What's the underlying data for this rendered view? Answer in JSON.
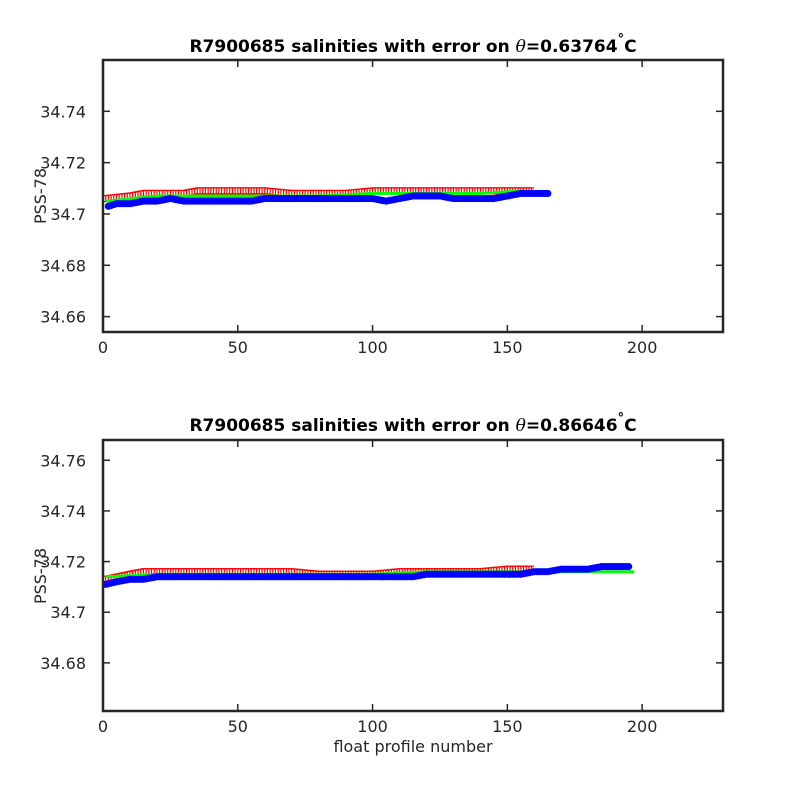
{
  "chart_data": [
    {
      "type": "scatter",
      "title_main": "R7900685 salinities with error on ",
      "title_theta_symbol": "θ",
      "title_value": "=0.63764",
      "title_degree": "°",
      "title_unit": "C",
      "xlabel": "",
      "ylabel": "PSS-78",
      "xlim": [
        0,
        230
      ],
      "ylim": [
        34.654,
        34.76
      ],
      "xticks": [
        "0",
        "50",
        "100",
        "150",
        "200"
      ],
      "yticks": [
        "34.66",
        "34.68",
        "34.7",
        "34.72",
        "34.74"
      ],
      "xtick_values": [
        0,
        50,
        100,
        150,
        200
      ],
      "ytick_values": [
        34.66,
        34.68,
        34.7,
        34.72,
        34.74
      ],
      "grid": false,
      "series": [
        {
          "color": "#ff0000",
          "marker": "errorbar",
          "x": [
            1,
            10,
            15,
            20,
            30,
            35,
            40,
            50,
            60,
            70,
            80,
            90,
            100,
            110,
            120,
            130,
            140,
            150,
            160
          ],
          "y": [
            34.706,
            34.707,
            34.708,
            34.708,
            34.708,
            34.709,
            34.709,
            34.709,
            34.709,
            34.708,
            34.708,
            34.708,
            34.709,
            34.709,
            34.709,
            34.709,
            34.709,
            34.709,
            34.709
          ]
        },
        {
          "color": "#00ff00",
          "marker": "line",
          "x": [
            1,
            20,
            40,
            60,
            80,
            100,
            120,
            140,
            155,
            165
          ],
          "y": [
            34.705,
            34.707,
            34.707,
            34.707,
            34.707,
            34.708,
            34.708,
            34.708,
            34.709,
            34.708
          ]
        },
        {
          "color": "#0000ff",
          "marker": "dot",
          "x": [
            2,
            5,
            10,
            15,
            20,
            25,
            30,
            35,
            40,
            45,
            50,
            55,
            60,
            65,
            70,
            75,
            80,
            85,
            90,
            95,
            100,
            105,
            110,
            115,
            120,
            125,
            130,
            135,
            140,
            145,
            150,
            155,
            160,
            165
          ],
          "y": [
            34.703,
            34.704,
            34.704,
            34.705,
            34.705,
            34.706,
            34.705,
            34.705,
            34.705,
            34.705,
            34.705,
            34.705,
            34.706,
            34.706,
            34.706,
            34.706,
            34.706,
            34.706,
            34.706,
            34.706,
            34.706,
            34.705,
            34.706,
            34.707,
            34.707,
            34.707,
            34.706,
            34.706,
            34.706,
            34.706,
            34.707,
            34.708,
            34.708,
            34.708
          ]
        }
      ]
    },
    {
      "type": "scatter",
      "title_main": "R7900685 salinities with error on ",
      "title_theta_symbol": "θ",
      "title_value": "=0.86646",
      "title_degree": "°",
      "title_unit": "C",
      "xlabel": "float profile number",
      "ylabel": "PSS-78",
      "xlim": [
        0,
        230
      ],
      "ylim": [
        34.661,
        34.768
      ],
      "xticks": [
        "0",
        "50",
        "100",
        "150",
        "200"
      ],
      "yticks": [
        "34.68",
        "34.7",
        "34.72",
        "34.74",
        "34.76"
      ],
      "xtick_values": [
        0,
        50,
        100,
        150,
        200
      ],
      "ytick_values": [
        34.68,
        34.7,
        34.72,
        34.74,
        34.76
      ],
      "grid": false,
      "series": [
        {
          "color": "#ff0000",
          "marker": "errorbar",
          "x": [
            1,
            10,
            15,
            20,
            30,
            35,
            40,
            50,
            60,
            70,
            80,
            90,
            100,
            110,
            120,
            130,
            140,
            150,
            160
          ],
          "y": [
            34.713,
            34.715,
            34.716,
            34.716,
            34.716,
            34.716,
            34.716,
            34.716,
            34.716,
            34.716,
            34.715,
            34.715,
            34.715,
            34.716,
            34.716,
            34.716,
            34.716,
            34.717,
            34.717
          ]
        },
        {
          "color": "#00ff00",
          "marker": "line",
          "x": [
            1,
            20,
            40,
            60,
            80,
            100,
            120,
            140,
            160,
            180,
            197
          ],
          "y": [
            34.714,
            34.715,
            34.715,
            34.715,
            34.715,
            34.715,
            34.716,
            34.716,
            34.716,
            34.716,
            34.716
          ]
        },
        {
          "color": "#0000ff",
          "marker": "dot",
          "x": [
            1,
            5,
            10,
            15,
            20,
            25,
            30,
            35,
            40,
            45,
            50,
            55,
            60,
            65,
            70,
            75,
            80,
            85,
            90,
            95,
            100,
            105,
            110,
            115,
            120,
            125,
            130,
            135,
            140,
            145,
            150,
            155,
            160,
            165,
            170,
            175,
            180,
            185,
            190,
            195
          ],
          "y": [
            34.711,
            34.712,
            34.713,
            34.713,
            34.714,
            34.714,
            34.714,
            34.714,
            34.714,
            34.714,
            34.714,
            34.714,
            34.714,
            34.714,
            34.714,
            34.714,
            34.714,
            34.714,
            34.714,
            34.714,
            34.714,
            34.714,
            34.714,
            34.714,
            34.715,
            34.715,
            34.715,
            34.715,
            34.715,
            34.715,
            34.715,
            34.715,
            34.716,
            34.716,
            34.717,
            34.717,
            34.717,
            34.718,
            34.718,
            34.718
          ]
        }
      ]
    }
  ]
}
